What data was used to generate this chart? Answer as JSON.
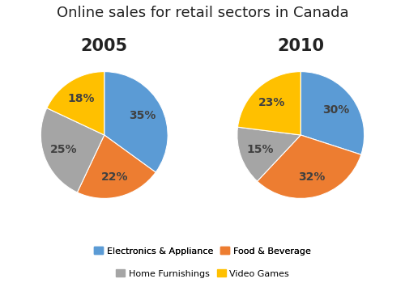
{
  "title": "Online sales for retail sectors in Canada",
  "title_fontsize": 13,
  "year_labels": [
    "2005",
    "2010"
  ],
  "year_fontsize": 15,
  "categories": [
    "Electronics & Appliance",
    "Food & Beverage",
    "Home Furnishings",
    "Video Games"
  ],
  "colors": [
    "#5B9BD5",
    "#ED7D31",
    "#A5A5A5",
    "#FFC000"
  ],
  "values_2005": [
    35,
    22,
    25,
    18
  ],
  "values_2010": [
    30,
    32,
    15,
    23
  ],
  "startangle": 90,
  "legend_labels_row1": [
    "Electronics & Appliance",
    "Food & Beverage"
  ],
  "legend_labels_row2": [
    "Home Furnishings",
    "Video Games"
  ],
  "legend_colors_row1": [
    "#5B9BD5",
    "#ED7D31"
  ],
  "legend_colors_row2": [
    "#A5A5A5",
    "#FFC000"
  ],
  "pct_fontsize": 10,
  "text_color": "#404040",
  "background_color": "#FFFFFF"
}
